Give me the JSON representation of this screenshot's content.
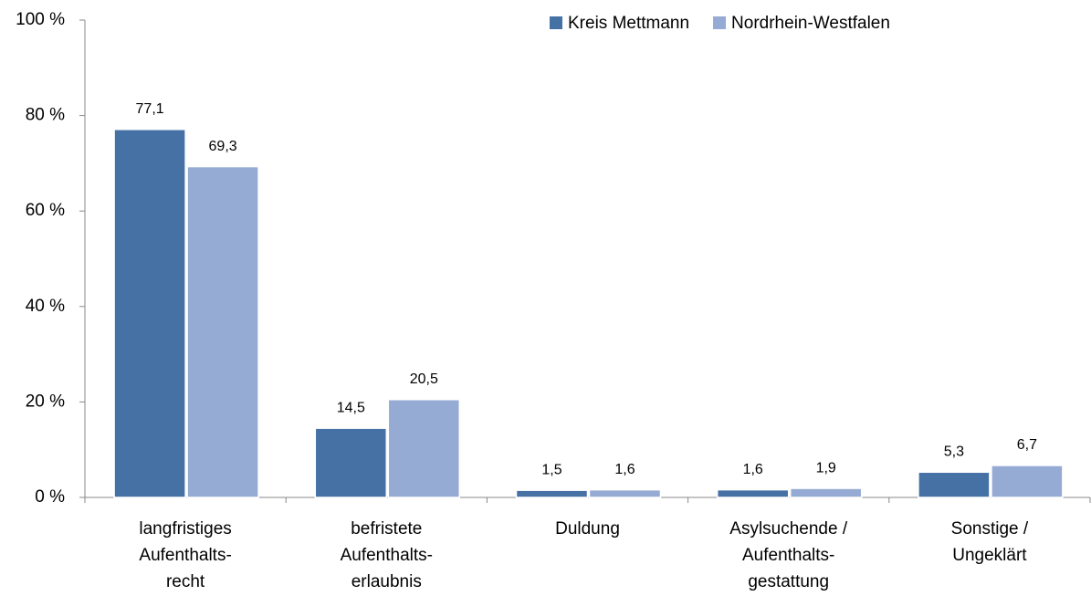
{
  "chart_data": {
    "type": "bar",
    "categories": [
      [
        "langfristiges",
        "Aufenthalts-",
        "recht"
      ],
      [
        "befristete",
        "Aufenthalts-",
        "erlaubnis"
      ],
      [
        "Duldung"
      ],
      [
        "Asylsuchende /",
        "Aufenthalts-",
        "gestattung"
      ],
      [
        "Sonstige /",
        "Ungeklärt"
      ]
    ],
    "series": [
      {
        "name": "Kreis Mettmann",
        "color": "#4671a5",
        "values": [
          77.1,
          14.5,
          1.5,
          1.6,
          5.3
        ],
        "value_labels": [
          "77,1",
          "14,5",
          "1,5",
          "1,6",
          "5,3"
        ]
      },
      {
        "name": "Nordrhein-Westfalen",
        "color": "#95abd3",
        "values": [
          69.3,
          20.5,
          1.6,
          1.9,
          6.7
        ],
        "value_labels": [
          "69,3",
          "20,5",
          "1,6",
          "1,9",
          "6,7"
        ]
      }
    ],
    "ylim": [
      0,
      100
    ],
    "yticks": [
      {
        "value": 0,
        "label": "0 %"
      },
      {
        "value": 20,
        "label": "20 %"
      },
      {
        "value": 40,
        "label": "40 %"
      },
      {
        "value": 60,
        "label": "60 %"
      },
      {
        "value": 80,
        "label": "80 %"
      },
      {
        "value": 100,
        "label": "100 %"
      }
    ],
    "legend": "top-right"
  }
}
